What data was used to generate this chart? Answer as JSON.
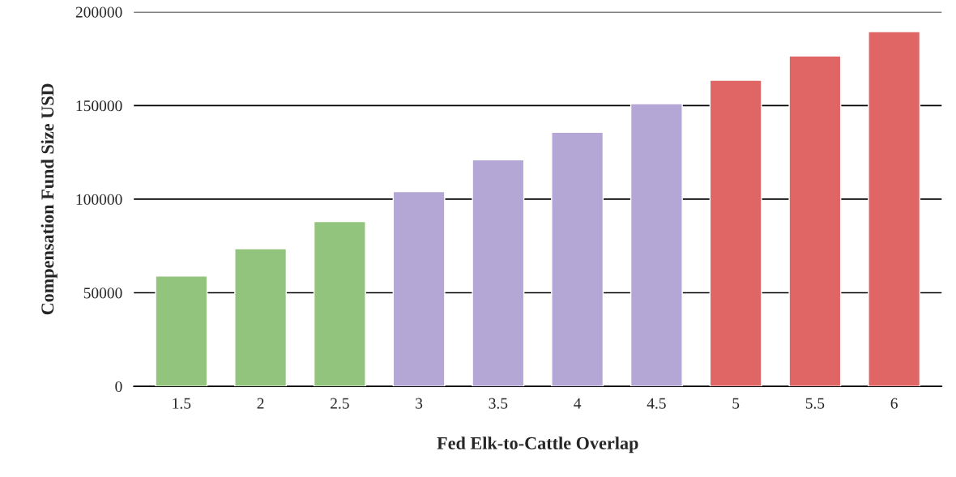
{
  "chart_data": {
    "type": "bar",
    "xlabel": "Fed Elk-to-Cattle Overlap",
    "ylabel": "Compensation Fund Size USD",
    "categories": [
      "1.5",
      "2",
      "2.5",
      "3",
      "3.5",
      "4",
      "4.5",
      "5",
      "5.5",
      "6"
    ],
    "values": [
      59000,
      73500,
      88000,
      104000,
      121000,
      135700,
      151000,
      163500,
      176500,
      189500
    ],
    "colors": [
      "#93c47d",
      "#93c47d",
      "#93c47d",
      "#b4a7d6",
      "#b4a7d6",
      "#b4a7d6",
      "#b4a7d6",
      "#e06666",
      "#e06666",
      "#e06666"
    ],
    "ylim": [
      0,
      200000
    ],
    "yticks": [
      0,
      50000,
      100000,
      150000,
      200000
    ],
    "grid": "y"
  }
}
